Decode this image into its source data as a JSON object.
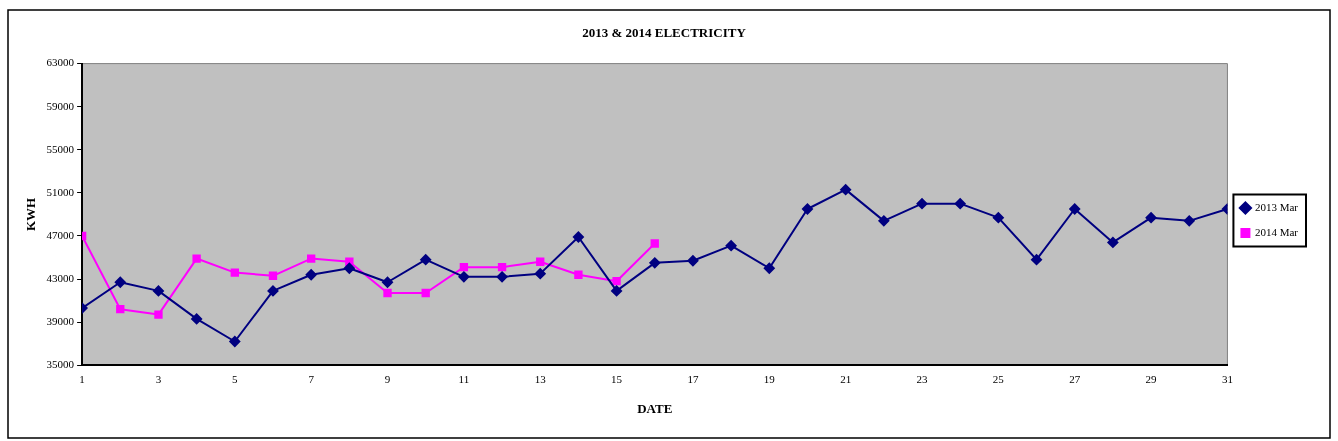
{
  "chart_data": {
    "type": "line",
    "title": "2013 & 2014 ELECTRICITY",
    "xlabel": "DATE",
    "ylabel": "KWH",
    "x": [
      1,
      2,
      3,
      4,
      5,
      6,
      7,
      8,
      9,
      10,
      11,
      12,
      13,
      14,
      15,
      16,
      17,
      18,
      19,
      20,
      21,
      22,
      23,
      24,
      25,
      26,
      27,
      28,
      29,
      30,
      31
    ],
    "xlim": [
      1,
      31
    ],
    "xticks": [
      1,
      3,
      5,
      7,
      9,
      11,
      13,
      15,
      17,
      19,
      21,
      23,
      25,
      27,
      29,
      31
    ],
    "ylim": [
      35000,
      63000
    ],
    "yticks": [
      35000,
      39000,
      43000,
      47000,
      51000,
      55000,
      59000,
      63000
    ],
    "grid": false,
    "legend": "right",
    "series": [
      {
        "name": "2013 Mar",
        "color": "#000080",
        "marker": "diamond",
        "values": [
          40300,
          42700,
          41900,
          39300,
          37200,
          41900,
          43400,
          44000,
          42700,
          44800,
          43200,
          43200,
          43500,
          46900,
          41900,
          44500,
          44700,
          46100,
          44000,
          49500,
          51300,
          48400,
          50000,
          50000,
          48700,
          44800,
          49500,
          46400,
          48700,
          48400,
          49500
        ]
      },
      {
        "name": "2014 Mar",
        "color": "#ff00ff",
        "marker": "square",
        "x": [
          1,
          2,
          3,
          4,
          5,
          6,
          7,
          8,
          9,
          10,
          11,
          12,
          13,
          14,
          15,
          16
        ],
        "values": [
          47000,
          40200,
          39700,
          44900,
          43600,
          43300,
          44900,
          44600,
          41700,
          41700,
          44100,
          44100,
          44600,
          43400,
          42800,
          46300
        ]
      }
    ]
  }
}
